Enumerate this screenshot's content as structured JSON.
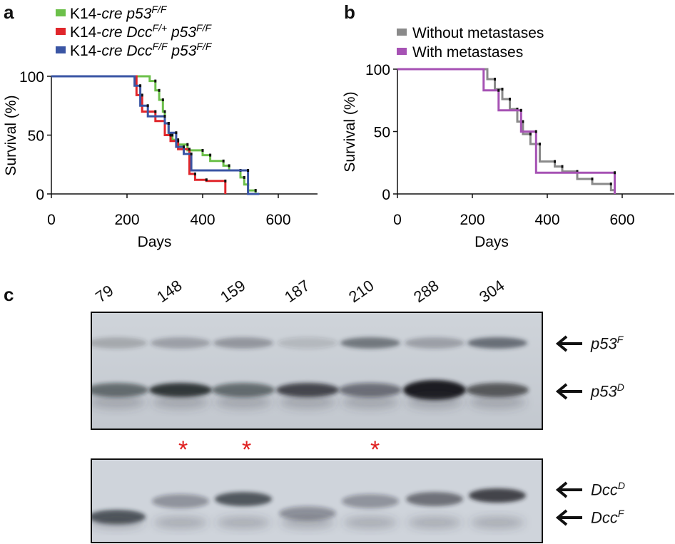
{
  "panel_a": {
    "letter": "a",
    "legend": [
      {
        "prefix": "K14-",
        "italic": "cre p53",
        "sup": "F/F",
        "mid_italic": "",
        "mid_sup": "",
        "color": "#6cc04a"
      },
      {
        "prefix": "K14-",
        "italic": "cre Dcc",
        "sup": "F/+",
        "mid_italic": " p53",
        "mid_sup": "F/F",
        "color": "#e0262b"
      },
      {
        "prefix": "K14-",
        "italic": "cre Dcc",
        "sup": "F/F",
        "mid_italic": " p53",
        "mid_sup": "F/F",
        "color": "#3a55a4"
      }
    ],
    "xlabel": "Days",
    "ylabel": "Survival (%)",
    "xticks": [
      "0",
      "200",
      "400",
      "600"
    ],
    "yticks": [
      "0",
      "50",
      "100"
    ]
  },
  "panel_b": {
    "letter": "b",
    "legend": [
      {
        "label": "Without metastases",
        "color": "#8a8a8a"
      },
      {
        "label": "With metastases",
        "color": "#a652b4"
      }
    ],
    "xlabel": "Days",
    "ylabel": "Survival (%)",
    "xticks": [
      "0",
      "200",
      "400",
      "600"
    ],
    "yticks": [
      "0",
      "50",
      "100"
    ]
  },
  "panel_c": {
    "letter": "c",
    "lanes": [
      "79",
      "148",
      "159",
      "187",
      "210",
      "288",
      "304"
    ],
    "top_gel_labels": [
      {
        "base": "p53",
        "sup": "F"
      },
      {
        "base": "p53",
        "sup": "D"
      }
    ],
    "bottom_gel_labels": [
      {
        "base": "Dcc",
        "sup": "D"
      },
      {
        "base": "Dcc",
        "sup": "F"
      }
    ],
    "asterisk_symbol": "*",
    "asterisk_lanes": [
      "148",
      "159",
      "210"
    ]
  },
  "chart_data": [
    {
      "type": "line",
      "title": "",
      "xlabel": "Days",
      "ylabel": "Survival (%)",
      "xlim": [
        0,
        700
      ],
      "ylim": [
        0,
        100
      ],
      "series": [
        {
          "name": "K14-cre p53F/F",
          "color": "#6cc04a",
          "steps": [
            [
              0,
              100
            ],
            [
              260,
              100
            ],
            [
              260,
              96
            ],
            [
              275,
              96
            ],
            [
              275,
              88
            ],
            [
              285,
              88
            ],
            [
              285,
              80
            ],
            [
              295,
              80
            ],
            [
              295,
              70
            ],
            [
              300,
              70
            ],
            [
              300,
              60
            ],
            [
              310,
              60
            ],
            [
              310,
              50
            ],
            [
              320,
              50
            ],
            [
              320,
              46
            ],
            [
              335,
              46
            ],
            [
              335,
              42
            ],
            [
              360,
              42
            ],
            [
              360,
              37
            ],
            [
              400,
              37
            ],
            [
              400,
              33
            ],
            [
              420,
              33
            ],
            [
              420,
              28
            ],
            [
              455,
              28
            ],
            [
              455,
              24
            ],
            [
              470,
              24
            ],
            [
              470,
              20
            ],
            [
              500,
              20
            ],
            [
              500,
              14
            ],
            [
              510,
              14
            ],
            [
              510,
              8
            ],
            [
              520,
              8
            ],
            [
              520,
              3
            ],
            [
              540,
              3
            ],
            [
              540,
              0
            ]
          ]
        },
        {
          "name": "K14-cre DccF/+ p53F/F",
          "color": "#e0262b",
          "steps": [
            [
              0,
              100
            ],
            [
              225,
              100
            ],
            [
              225,
              84
            ],
            [
              240,
              84
            ],
            [
              240,
              70
            ],
            [
              275,
              70
            ],
            [
              275,
              62
            ],
            [
              300,
              62
            ],
            [
              300,
              50
            ],
            [
              315,
              50
            ],
            [
              315,
              45
            ],
            [
              335,
              45
            ],
            [
              335,
              38
            ],
            [
              365,
              38
            ],
            [
              365,
              17
            ],
            [
              380,
              17
            ],
            [
              380,
              12
            ],
            [
              410,
              12
            ],
            [
              410,
              11
            ],
            [
              460,
              11
            ],
            [
              460,
              0
            ]
          ]
        },
        {
          "name": "K14-cre DccF/F p53F/F",
          "color": "#3a55a4",
          "steps": [
            [
              0,
              100
            ],
            [
              220,
              100
            ],
            [
              220,
              92
            ],
            [
              235,
              92
            ],
            [
              235,
              75
            ],
            [
              255,
              75
            ],
            [
              255,
              66
            ],
            [
              300,
              66
            ],
            [
              300,
              60
            ],
            [
              310,
              60
            ],
            [
              310,
              52
            ],
            [
              330,
              52
            ],
            [
              330,
              40
            ],
            [
              350,
              40
            ],
            [
              350,
              34
            ],
            [
              370,
              34
            ],
            [
              370,
              20
            ],
            [
              520,
              20
            ],
            [
              520,
              0
            ],
            [
              550,
              0
            ]
          ]
        }
      ]
    },
    {
      "type": "line",
      "title": "",
      "xlabel": "Days",
      "ylabel": "Survival (%)",
      "xlim": [
        0,
        700
      ],
      "ylim": [
        0,
        100
      ],
      "series": [
        {
          "name": "Without metastases",
          "color": "#8a8a8a",
          "steps": [
            [
              0,
              100
            ],
            [
              240,
              100
            ],
            [
              240,
              92
            ],
            [
              260,
              92
            ],
            [
              260,
              84
            ],
            [
              280,
              84
            ],
            [
              280,
              76
            ],
            [
              300,
              76
            ],
            [
              300,
              68
            ],
            [
              320,
              68
            ],
            [
              320,
              58
            ],
            [
              335,
              58
            ],
            [
              335,
              48
            ],
            [
              355,
              48
            ],
            [
              355,
              40
            ],
            [
              380,
              40
            ],
            [
              380,
              26
            ],
            [
              420,
              26
            ],
            [
              420,
              22
            ],
            [
              440,
              22
            ],
            [
              440,
              18
            ],
            [
              480,
              18
            ],
            [
              480,
              12
            ],
            [
              520,
              12
            ],
            [
              520,
              8
            ],
            [
              570,
              8
            ],
            [
              570,
              3
            ],
            [
              580,
              3
            ],
            [
              580,
              0
            ]
          ]
        },
        {
          "name": "With metastases",
          "color": "#a652b4",
          "steps": [
            [
              0,
              100
            ],
            [
              230,
              100
            ],
            [
              230,
              83
            ],
            [
              270,
              83
            ],
            [
              270,
              67
            ],
            [
              330,
              67
            ],
            [
              330,
              50
            ],
            [
              370,
              50
            ],
            [
              370,
              17
            ],
            [
              580,
              17
            ],
            [
              580,
              0
            ]
          ]
        }
      ]
    }
  ]
}
